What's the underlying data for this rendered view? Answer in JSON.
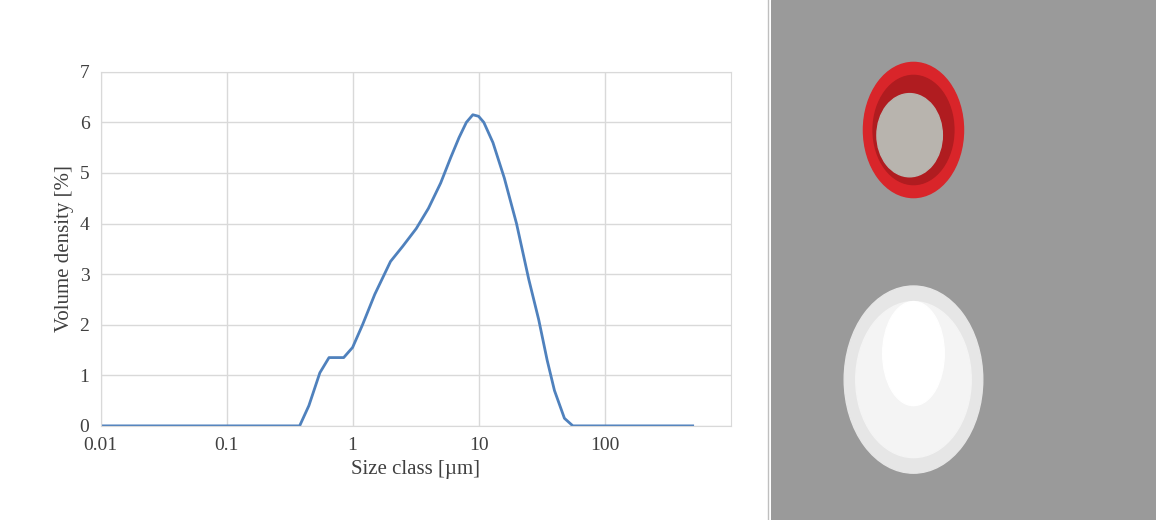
{
  "chart_data": {
    "type": "line",
    "x_label": "Size class [µm]",
    "y_label": "Volume density [%]",
    "x": [
      0.01,
      0.02,
      0.05,
      0.1,
      0.2,
      0.3,
      0.38,
      0.45,
      0.55,
      0.65,
      0.75,
      0.85,
      1.0,
      1.2,
      1.5,
      2.0,
      2.5,
      3.2,
      4,
      5,
      6,
      7,
      8,
      9,
      10,
      11,
      13,
      16,
      20,
      25,
      30,
      35,
      40,
      48,
      56,
      100,
      200,
      500
    ],
    "values": [
      0,
      0,
      0,
      0,
      0,
      0,
      0,
      0.4,
      1.05,
      1.35,
      1.35,
      1.35,
      1.55,
      2.0,
      2.6,
      3.25,
      3.55,
      3.9,
      4.3,
      4.8,
      5.3,
      5.7,
      6.0,
      6.15,
      6.12,
      6.0,
      5.6,
      4.9,
      4.0,
      2.9,
      2.1,
      1.3,
      0.7,
      0.15,
      0,
      0,
      0,
      0
    ],
    "color": "#4f81bd",
    "log": "x",
    "xlim": [
      0.01,
      1000
    ],
    "xticks": [
      0.01,
      0.1,
      1,
      10,
      100
    ],
    "ylim": [
      0,
      7
    ],
    "yticks": [
      0,
      1,
      2,
      3,
      4,
      5,
      6,
      7
    ],
    "grid": true
  }
}
